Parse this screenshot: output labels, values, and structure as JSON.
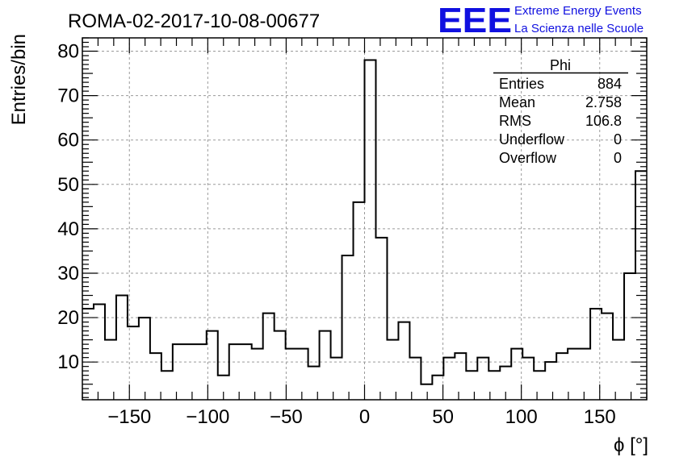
{
  "chart_data": {
    "type": "bar",
    "title": "ROMA-02-2017-10-08-00677",
    "xlabel": "ϕ [°]",
    "ylabel": "Entries/bin",
    "xlim": [
      -180,
      180
    ],
    "ylim": [
      1.5,
      83
    ],
    "grid": true,
    "bin_edges": [
      -180,
      -172.8,
      -165.6,
      -158.4,
      -151.2,
      -144,
      -136.8,
      -129.6,
      -122.4,
      -115.2,
      -108,
      -100.8,
      -93.6,
      -86.4,
      -79.2,
      -72,
      -64.8,
      -57.6,
      -50.4,
      -43.2,
      -36,
      -28.8,
      -21.6,
      -14.4,
      -7.2,
      0,
      7.2,
      14.4,
      21.6,
      28.8,
      36,
      43.2,
      50.4,
      57.6,
      64.8,
      72,
      79.2,
      86.4,
      93.6,
      100.8,
      108,
      115.2,
      122.4,
      129.6,
      136.8,
      144,
      151.2,
      158.4,
      165.6,
      172.8,
      180
    ],
    "values": [
      22,
      23,
      15,
      25,
      18,
      20,
      12,
      8,
      14,
      14,
      14,
      17,
      7,
      14,
      14,
      13,
      21,
      17,
      13,
      13,
      9,
      17,
      11,
      34,
      46,
      78,
      38,
      15,
      19,
      11,
      5,
      7,
      11,
      12,
      8,
      11,
      8,
      9,
      13,
      11,
      8,
      10,
      12,
      13,
      13,
      22,
      21,
      15,
      30,
      53
    ],
    "x_ticks": [
      -150,
      -100,
      -50,
      0,
      50,
      100,
      150
    ],
    "x_tick_labels": [
      "−150",
      "−100",
      "−50",
      "0",
      "50",
      "100",
      "150"
    ],
    "y_ticks": [
      10,
      20,
      30,
      40,
      50,
      60,
      70,
      80
    ],
    "y_tick_labels": [
      "10",
      "20",
      "30",
      "40",
      "50",
      "60",
      "70",
      "80"
    ],
    "stats_box": {
      "title": "Phi",
      "rows": [
        {
          "label": "Entries",
          "value": "884"
        },
        {
          "label": "Mean",
          "value": "2.758"
        },
        {
          "label": "RMS",
          "value": "106.8"
        },
        {
          "label": "Underflow",
          "value": "0"
        },
        {
          "label": "Overflow",
          "value": "0"
        }
      ]
    },
    "logo": {
      "mark": "EEE",
      "line1": "Extreme Energy Events",
      "line2": "La Scienza nelle Scuole",
      "color": "#1010e0"
    },
    "line_color": "#000000",
    "grid_color": "#9a9a9a"
  }
}
